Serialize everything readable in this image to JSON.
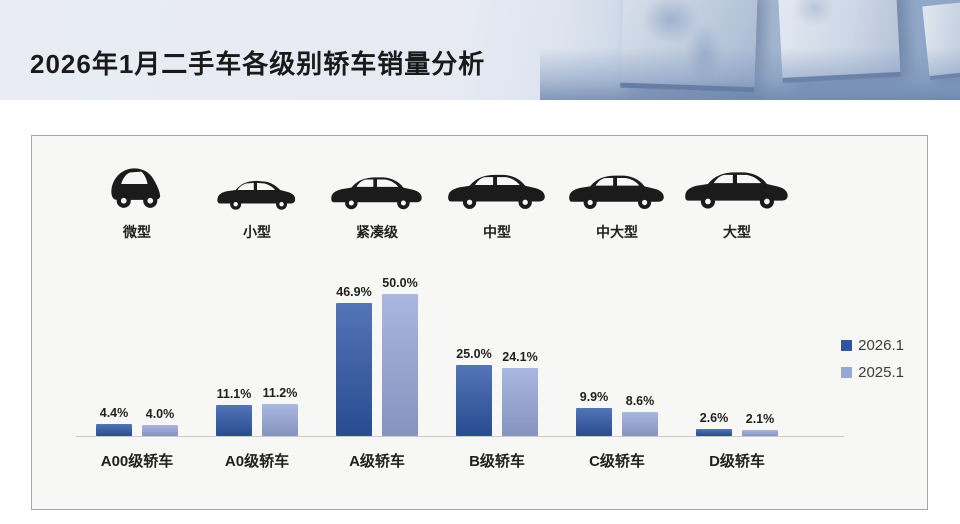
{
  "header": {
    "title": "2026年1月二手车各级别轿车销量分析"
  },
  "vehicle_classes": [
    {
      "label": "微型",
      "icon": "micro-car-icon"
    },
    {
      "label": "小型",
      "icon": "hatchback-car-icon"
    },
    {
      "label": "紧凑级",
      "icon": "sedan-car-icon"
    },
    {
      "label": "中型",
      "icon": "sedan-car-icon"
    },
    {
      "label": "中大型",
      "icon": "sedan-car-icon"
    },
    {
      "label": "大型",
      "icon": "sedan-car-icon"
    }
  ],
  "chart_data": {
    "type": "bar",
    "title": "2026年1月二手车各级别轿车销量分析",
    "categories": [
      "A00级轿车",
      "A0级轿车",
      "A级轿车",
      "B级轿车",
      "C级轿车",
      "D级轿车"
    ],
    "series": [
      {
        "name": "2026.1",
        "color": "#2e56a5",
        "values": [
          4.4,
          11.1,
          46.9,
          25.0,
          9.9,
          2.6
        ]
      },
      {
        "name": "2025.1",
        "color": "#97a7d8",
        "values": [
          4.0,
          11.2,
          50.0,
          24.1,
          8.6,
          2.1
        ]
      }
    ],
    "value_suffix": "%",
    "ylim": [
      0,
      50
    ],
    "legend_position": "right",
    "grid": false
  },
  "colors": {
    "series_2026": "#2e56a5",
    "series_2025": "#97a7d8",
    "axis_line": "#c9c9c9",
    "title_text": "#1a1a1a",
    "card_background": "#f7f7f5",
    "card_border": "#a3a7ad",
    "car_silhouette": "#1b1b1b"
  }
}
